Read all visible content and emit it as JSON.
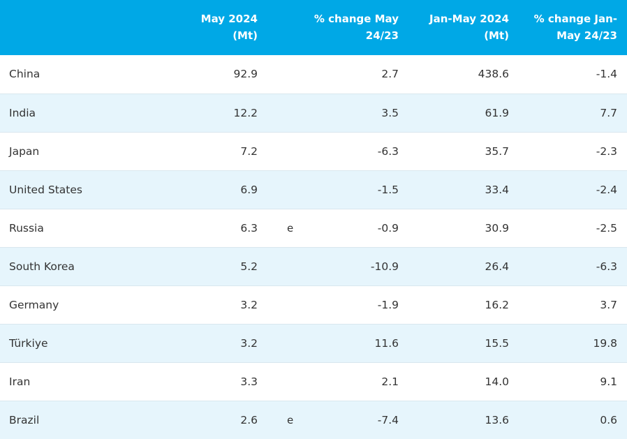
{
  "table": {
    "headers": [
      "",
      "May 2024\n(Mt)",
      "",
      "% change May\n24/23",
      "Jan-May 2024\n(Mt)",
      "% change Jan-\nMay 24/23"
    ],
    "rows": [
      {
        "country": "China",
        "may": "92.9",
        "flag": "",
        "change_may": "2.7",
        "jan_may": "438.6",
        "change_jan_may": "-1.4"
      },
      {
        "country": "India",
        "may": "12.2",
        "flag": "",
        "change_may": "3.5",
        "jan_may": "61.9",
        "change_jan_may": "7.7"
      },
      {
        "country": "Japan",
        "may": "7.2",
        "flag": "",
        "change_may": "-6.3",
        "jan_may": "35.7",
        "change_jan_may": "-2.3"
      },
      {
        "country": "United States",
        "may": "6.9",
        "flag": "",
        "change_may": "-1.5",
        "jan_may": "33.4",
        "change_jan_may": "-2.4"
      },
      {
        "country": "Russia",
        "may": "6.3",
        "flag": "e",
        "change_may": "-0.9",
        "jan_may": "30.9",
        "change_jan_may": "-2.5"
      },
      {
        "country": "South Korea",
        "may": "5.2",
        "flag": "",
        "change_may": "-10.9",
        "jan_may": "26.4",
        "change_jan_may": "-6.3"
      },
      {
        "country": "Germany",
        "may": "3.2",
        "flag": "",
        "change_may": "-1.9",
        "jan_may": "16.2",
        "change_jan_may": "3.7"
      },
      {
        "country": "Türkiye",
        "may": "3.2",
        "flag": "",
        "change_may": "11.6",
        "jan_may": "15.5",
        "change_jan_may": "19.8"
      },
      {
        "country": "Iran",
        "may": "3.3",
        "flag": "",
        "change_may": "2.1",
        "jan_may": "14.0",
        "change_jan_may": "9.1"
      },
      {
        "country": "Brazil",
        "may": "2.6",
        "flag": "e",
        "change_may": "-7.4",
        "jan_may": "13.6",
        "change_jan_may": "0.6"
      }
    ]
  },
  "colors": {
    "header_bg": "#00a8e6",
    "header_text": "#ffffff",
    "row_alt_bg": "#e6f5fc",
    "row_bg": "#ffffff",
    "text": "#333333"
  }
}
